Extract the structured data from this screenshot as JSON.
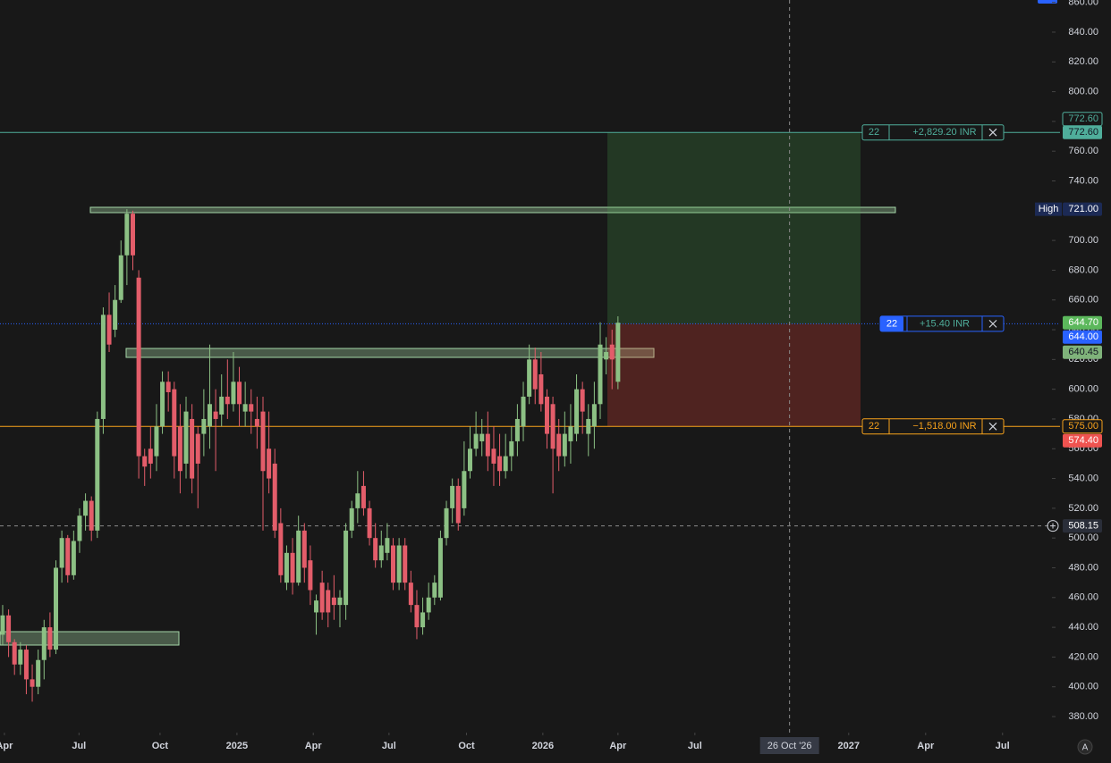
{
  "chart_data": {
    "type": "candlestick",
    "up_color": "#8cc084",
    "down_color": "#e35d6a",
    "open": [
      435,
      448,
      430,
      415,
      425,
      405,
      400,
      418,
      440,
      425,
      480,
      500,
      475,
      498,
      515,
      525,
      505,
      580,
      650,
      640,
      660,
      690,
      718,
      675,
      555,
      560,
      555,
      575,
      605,
      600,
      575,
      550,
      580,
      570,
      570,
      575,
      585,
      583,
      595,
      590,
      605,
      585,
      590,
      580,
      585,
      560,
      550,
      510,
      470,
      490,
      470,
      505,
      485,
      450,
      470,
      465,
      460,
      455,
      455,
      505,
      520,
      535,
      520,
      500,
      485,
      490,
      495,
      470,
      495,
      470,
      455,
      440,
      450,
      460,
      460,
      500,
      520,
      535,
      520,
      545,
      560,
      565,
      570,
      560,
      555,
      545,
      555,
      565,
      575,
      595,
      620,
      610,
      595,
      590,
      570,
      555,
      565,
      570,
      600,
      570,
      575,
      590,
      620,
      630,
      605
    ],
    "high": [
      455,
      452,
      432,
      430,
      428,
      415,
      425,
      445,
      450,
      485,
      505,
      502,
      505,
      520,
      530,
      528,
      585,
      655,
      665,
      670,
      700,
      721,
      720,
      680,
      560,
      575,
      590,
      612,
      612,
      605,
      590,
      595,
      590,
      575,
      600,
      630,
      600,
      610,
      620,
      625,
      615,
      605,
      600,
      595,
      595,
      585,
      560,
      520,
      495,
      500,
      515,
      510,
      495,
      462,
      478,
      470,
      475,
      465,
      510,
      525,
      545,
      545,
      525,
      510,
      505,
      510,
      500,
      500,
      500,
      478,
      465,
      460,
      470,
      475,
      505,
      525,
      540,
      540,
      565,
      575,
      585,
      580,
      585,
      575,
      570,
      570,
      575,
      590,
      605,
      630,
      628,
      625,
      600,
      595,
      580,
      585,
      590,
      610,
      605,
      590,
      605,
      645,
      635,
      640,
      649
    ],
    "low": [
      428,
      420,
      408,
      408,
      395,
      390,
      395,
      405,
      420,
      422,
      470,
      470,
      472,
      490,
      505,
      498,
      500,
      570,
      625,
      635,
      658,
      670,
      680,
      540,
      535,
      540,
      545,
      570,
      585,
      540,
      530,
      540,
      530,
      520,
      555,
      560,
      545,
      575,
      580,
      585,
      575,
      575,
      570,
      560,
      505,
      530,
      500,
      470,
      465,
      462,
      468,
      470,
      455,
      435,
      445,
      440,
      445,
      440,
      445,
      500,
      510,
      515,
      495,
      480,
      480,
      485,
      465,
      465,
      465,
      450,
      432,
      435,
      445,
      455,
      458,
      495,
      510,
      505,
      515,
      540,
      555,
      555,
      545,
      535,
      535,
      540,
      545,
      555,
      565,
      590,
      590,
      585,
      560,
      530,
      545,
      548,
      550,
      565,
      570,
      555,
      560,
      580,
      610,
      600,
      600
    ],
    "close": [
      448,
      430,
      415,
      425,
      405,
      400,
      418,
      440,
      425,
      480,
      500,
      475,
      498,
      515,
      525,
      505,
      580,
      650,
      630,
      660,
      690,
      718,
      690,
      555,
      548,
      550,
      575,
      605,
      598,
      555,
      545,
      585,
      540,
      550,
      580,
      590,
      580,
      595,
      590,
      605,
      590,
      590,
      585,
      575,
      545,
      540,
      505,
      475,
      490,
      470,
      505,
      480,
      465,
      458,
      450,
      450,
      455,
      460,
      505,
      520,
      530,
      520,
      500,
      485,
      495,
      500,
      470,
      495,
      470,
      455,
      440,
      450,
      460,
      470,
      500,
      520,
      535,
      510,
      545,
      560,
      570,
      570,
      555,
      550,
      545,
      555,
      565,
      580,
      595,
      620,
      600,
      590,
      570,
      560,
      555,
      570,
      575,
      600,
      585,
      580,
      590,
      630,
      625,
      620,
      644.7
    ],
    "xlim": [
      -0.45,
      177.2
    ],
    "xticks": [
      {
        "value": 0.3,
        "label": "Apr"
      },
      {
        "value": 12.9,
        "label": "Jul"
      },
      {
        "value": 26.6,
        "label": "Oct"
      },
      {
        "value": 39.6,
        "label": "2025"
      },
      {
        "value": 52.5,
        "label": "Apr"
      },
      {
        "value": 65.3,
        "label": "Jul"
      },
      {
        "value": 78.4,
        "label": "Oct"
      },
      {
        "value": 91.3,
        "label": "2026"
      },
      {
        "value": 104,
        "label": "Apr"
      },
      {
        "value": 117,
        "label": "Jul"
      },
      {
        "value": 143,
        "label": "2027"
      },
      {
        "value": 156,
        "label": "Apr"
      },
      {
        "value": 169,
        "label": "Jul"
      }
    ],
    "ylim": [
      369.2,
      861.6
    ],
    "yticks": [
      {
        "value": 380,
        "label": "380.00"
      },
      {
        "value": 400,
        "label": "400.00"
      },
      {
        "value": 420,
        "label": "420.00"
      },
      {
        "value": 440,
        "label": "440.00"
      },
      {
        "value": 460,
        "label": "460.00"
      },
      {
        "value": 480,
        "label": "480.00"
      },
      {
        "value": 500,
        "label": "500.00"
      },
      {
        "value": 520,
        "label": "520.00"
      },
      {
        "value": 540,
        "label": "540.00"
      },
      {
        "value": 560,
        "label": "560.00"
      },
      {
        "value": 580,
        "label": "580.00"
      },
      {
        "value": 600,
        "label": "600.00"
      },
      {
        "value": 620,
        "label": "620.00"
      },
      {
        "value": 640,
        "label": "640.00"
      },
      {
        "value": 660,
        "label": "660.00"
      },
      {
        "value": 680,
        "label": "680.00"
      },
      {
        "value": 700,
        "label": "700.00"
      },
      {
        "value": 720,
        "label": "720.00"
      },
      {
        "value": 740,
        "label": "740.00"
      },
      {
        "value": 760,
        "label": "760.00"
      },
      {
        "value": 780,
        "label": "780.00"
      },
      {
        "value": 800,
        "label": "800.00"
      },
      {
        "value": 820,
        "label": "820.00"
      },
      {
        "value": 840,
        "label": "840.00"
      },
      {
        "value": 860,
        "label": "860.00"
      }
    ],
    "crosshair": {
      "x": 133,
      "x_label": "26 Oct '26",
      "price": 508.15,
      "price_label": "508.15"
    },
    "high_marker": {
      "label": "High",
      "value": 721,
      "value_label": "721.00"
    },
    "last_price": {
      "value": 644.7,
      "label": "644.70"
    },
    "bid_price": {
      "value": 640.45,
      "label": "640.45"
    },
    "ask_price": {
      "value": 574.4,
      "label": "574.40"
    },
    "trade": {
      "quantity": 22,
      "target": {
        "price": 772.6,
        "price_label": "772.60",
        "pnl_label": "+2,829.20 INR",
        "color": "#4fae9b"
      },
      "entry": {
        "price": 644,
        "price_label": "644.00",
        "pnl_label": "+15.40 INR",
        "color": "#2962ff"
      },
      "stop": {
        "price": 575,
        "price_label": "575.00",
        "pnl_label": "−1,518.00 INR",
        "color": "#f7a21b"
      }
    },
    "scale_mode": "A"
  }
}
